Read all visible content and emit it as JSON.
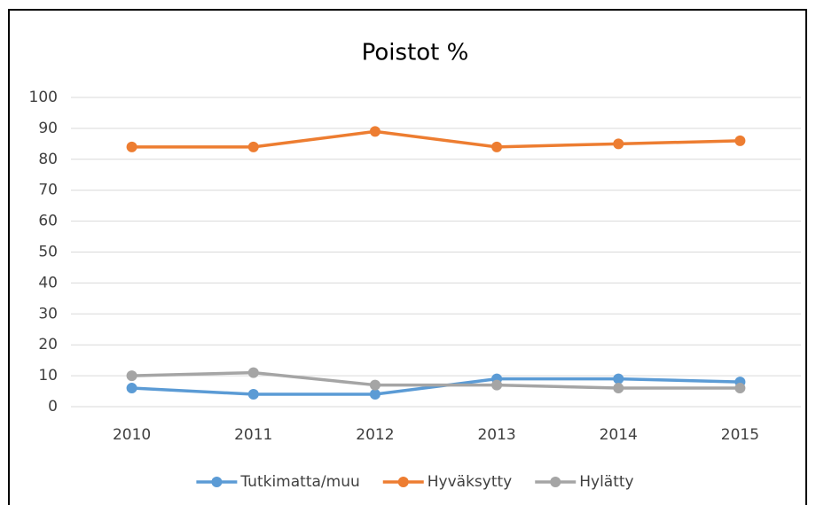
{
  "chart_data": {
    "type": "line",
    "title": "Poistot %",
    "categories": [
      "2010",
      "2011",
      "2012",
      "2013",
      "2014",
      "2015"
    ],
    "series": [
      {
        "name": "Tutkimatta/muu",
        "color": "#5b9bd5",
        "values": [
          6,
          4,
          4,
          9,
          9,
          8
        ]
      },
      {
        "name": "Hyväksytty",
        "color": "#ed7d31",
        "values": [
          84,
          84,
          89,
          84,
          85,
          86
        ]
      },
      {
        "name": "Hylätty",
        "color": "#a5a5a5",
        "values": [
          10,
          11,
          7,
          7,
          6,
          6
        ]
      }
    ],
    "ylim": [
      0,
      100
    ],
    "yticks": [
      0,
      10,
      20,
      30,
      40,
      50,
      60,
      70,
      80,
      90,
      100
    ],
    "grid": true,
    "legend": "bottom"
  }
}
